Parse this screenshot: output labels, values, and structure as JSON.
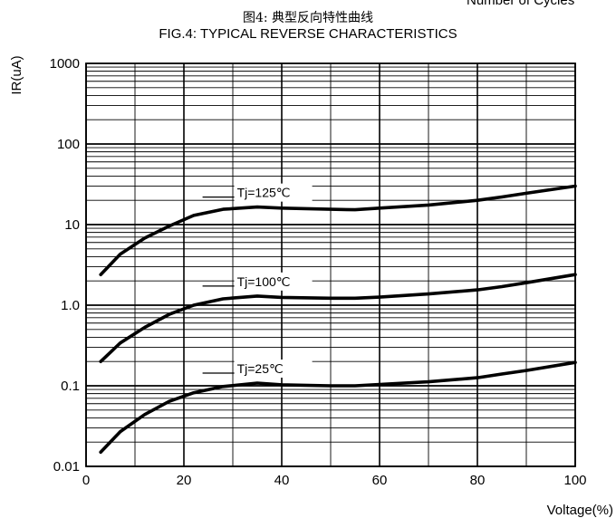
{
  "header": {
    "top_cut_text": "Number of Cycles",
    "title_cn": "图4: 典型反向特性曲线",
    "title_en": "FIG.4:  TYPICAL REVERSE CHARACTERISTICS"
  },
  "chart_data": {
    "type": "line",
    "title": "FIG.4:  TYPICAL REVERSE CHARACTERISTICS",
    "xlabel": "Voltage(%)",
    "ylabel": "IR(uA)",
    "xlim": [
      0,
      100
    ],
    "ylim": [
      0.01,
      1000
    ],
    "yscale": "log",
    "grid": true,
    "x_ticks": [
      "0",
      "20",
      "40",
      "60",
      "80",
      "100"
    ],
    "y_ticks": [
      "0.01",
      "0.1",
      "1.0",
      "10",
      "100",
      "1000"
    ],
    "series": [
      {
        "name": "Tj=125℃",
        "x": [
          3,
          7,
          12,
          17,
          22,
          28,
          35,
          40,
          50,
          55,
          60,
          70,
          80,
          85,
          90,
          100
        ],
        "y": [
          2.4,
          4.3,
          6.8,
          9.6,
          13,
          15.5,
          16.5,
          16,
          15.5,
          15.3,
          16,
          17.5,
          20,
          22,
          24.5,
          30
        ]
      },
      {
        "name": "Tj=100℃",
        "x": [
          3,
          7,
          12,
          17,
          22,
          28,
          35,
          40,
          50,
          55,
          60,
          70,
          80,
          85,
          90,
          100
        ],
        "y": [
          0.2,
          0.34,
          0.53,
          0.77,
          1.0,
          1.2,
          1.3,
          1.25,
          1.22,
          1.22,
          1.26,
          1.38,
          1.55,
          1.7,
          1.9,
          2.4
        ]
      },
      {
        "name": "Tj=25℃",
        "x": [
          3,
          7,
          12,
          17,
          22,
          28,
          35,
          40,
          50,
          55,
          60,
          70,
          80,
          85,
          90,
          100
        ],
        "y": [
          0.015,
          0.027,
          0.044,
          0.064,
          0.082,
          0.098,
          0.108,
          0.103,
          0.1,
          0.1,
          0.104,
          0.112,
          0.126,
          0.14,
          0.155,
          0.195
        ]
      }
    ]
  }
}
